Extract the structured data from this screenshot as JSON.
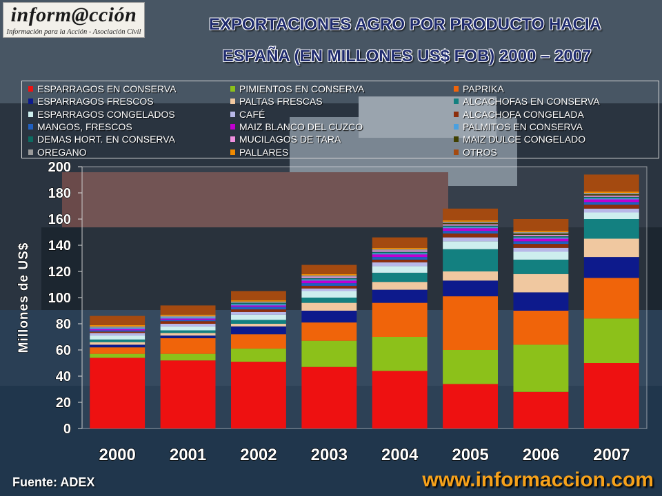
{
  "logo": {
    "text": "inform@cción",
    "tagline": "Información para la Acción - Asociación Civil"
  },
  "title_line1": "EXPORTACIONES AGRO POR PRODUCTO HACIA",
  "title_line2": "ESPAÑA (EN MILLONES US$ FOB)   2000 – 2007",
  "source": "Fuente: ADEX",
  "website": "www.informaccion.com",
  "chart_data": {
    "type": "bar",
    "stacked": true,
    "categories": [
      "2000",
      "2001",
      "2002",
      "2003",
      "2004",
      "2005",
      "2006",
      "2007"
    ],
    "ylabel": "Millones de US$",
    "ylim": [
      0,
      200
    ],
    "yticks": [
      0,
      20,
      40,
      60,
      80,
      100,
      120,
      140,
      160,
      180,
      200
    ],
    "grid": false,
    "legend_position": "top",
    "series": [
      {
        "name": "ESPARRAGOS EN CONSERVA",
        "color": "#ee1111",
        "values": [
          54,
          52,
          51,
          47,
          44,
          34,
          28,
          50
        ]
      },
      {
        "name": "PIMIENTOS EN CONSERVA",
        "color": "#8cc11a",
        "values": [
          3,
          5,
          10,
          20,
          26,
          26,
          36,
          34
        ]
      },
      {
        "name": "PAPRIKA",
        "color": "#f0640a",
        "values": [
          5,
          12,
          11,
          14,
          26,
          41,
          26,
          31
        ]
      },
      {
        "name": "ESPARRAGOS FRESCOS",
        "color": "#0d1a8c",
        "values": [
          2,
          2,
          6,
          9,
          10,
          12,
          14,
          16
        ]
      },
      {
        "name": "PALTAS FRESCAS",
        "color": "#f0c8a0",
        "values": [
          2,
          2,
          2,
          6,
          6,
          7,
          14,
          14
        ]
      },
      {
        "name": "ALCACHOFAS EN CONSERVA",
        "color": "#138080",
        "values": [
          2,
          2,
          3,
          4,
          7,
          17,
          11,
          15
        ]
      },
      {
        "name": "ESPARRAGOS CONGELADOS",
        "color": "#cdeeee",
        "values": [
          3,
          3,
          4,
          5,
          5,
          6,
          6,
          5
        ]
      },
      {
        "name": "CAFÉ",
        "color": "#b8b8e8",
        "values": [
          2,
          2,
          2,
          2,
          3,
          3,
          3,
          3
        ]
      },
      {
        "name": "ALCACHOFA CONGELADA",
        "color": "#8c2e0c",
        "values": [
          1,
          2,
          2,
          2,
          2,
          3,
          3,
          3
        ]
      },
      {
        "name": "MANGOS, FRESCOS",
        "color": "#2060c0",
        "values": [
          1,
          1,
          2,
          2,
          2,
          2,
          2,
          2
        ]
      },
      {
        "name": "MAIZ BLANCO DEL CUZCO",
        "color": "#c000d0",
        "values": [
          1,
          1,
          1,
          2,
          2,
          2,
          2,
          2
        ]
      },
      {
        "name": "PALMITOS EN CONSERVA",
        "color": "#4aa0e0",
        "values": [
          1,
          1,
          1,
          1,
          1,
          1,
          1,
          1
        ]
      },
      {
        "name": "DEMAS HORT. EN CONSERVA",
        "color": "#0c6a60",
        "values": [
          0,
          0,
          1,
          1,
          1,
          1,
          1,
          1
        ]
      },
      {
        "name": "MUCILAGOS DE TARA",
        "color": "#f090e0",
        "values": [
          0,
          0,
          0,
          1,
          1,
          1,
          1,
          1
        ]
      },
      {
        "name": "MAIZ DULCE CONGELADO",
        "color": "#404000",
        "values": [
          0,
          0,
          0,
          0,
          0,
          1,
          1,
          1
        ]
      },
      {
        "name": "OREGANO",
        "color": "#9a9a9a",
        "values": [
          1,
          1,
          1,
          1,
          1,
          1,
          1,
          1
        ]
      },
      {
        "name": "PALLARES",
        "color": "#f08a00",
        "values": [
          1,
          1,
          1,
          1,
          1,
          1,
          1,
          1
        ]
      },
      {
        "name": "OTROS",
        "color": "#a44a10",
        "values": [
          7,
          7,
          7,
          7,
          8,
          9,
          9,
          13
        ]
      }
    ]
  }
}
